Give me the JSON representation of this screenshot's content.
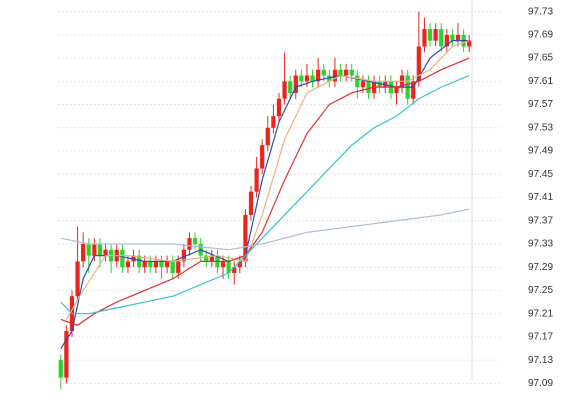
{
  "chart_data": {
    "type": "candlestick",
    "ylim": [
      97.07,
      97.75
    ],
    "yticks": [
      97.09,
      97.13,
      97.17,
      97.21,
      97.25,
      97.29,
      97.33,
      97.37,
      97.41,
      97.45,
      97.49,
      97.53,
      97.57,
      97.61,
      97.65,
      97.69,
      97.73
    ],
    "grid": true,
    "up_color": "#e8251f",
    "down_color": "#2fd12f",
    "open": [
      97.13,
      97.1,
      97.18,
      97.24,
      97.3,
      97.33,
      97.31,
      97.33,
      97.31,
      97.32,
      97.3,
      97.32,
      97.29,
      97.3,
      97.31,
      97.29,
      97.3,
      97.29,
      97.3,
      97.29,
      97.3,
      97.28,
      97.3,
      97.32,
      97.34,
      97.33,
      97.31,
      97.3,
      97.31,
      97.29,
      97.3,
      97.28,
      97.29,
      97.3,
      97.38,
      97.42,
      97.46,
      97.5,
      97.53,
      97.55,
      97.58,
      97.61,
      97.59,
      97.62,
      97.61,
      97.62,
      97.61,
      97.63,
      97.62,
      97.61,
      97.63,
      97.62,
      97.63,
      97.62,
      97.6,
      97.61,
      97.59,
      97.61,
      97.6,
      97.61,
      97.59,
      97.6,
      97.62,
      97.58,
      97.61,
      97.67,
      97.7,
      97.68,
      97.7,
      97.67,
      97.69,
      97.68,
      97.69,
      97.67
    ],
    "high": [
      97.14,
      97.19,
      97.25,
      97.36,
      97.35,
      97.34,
      97.34,
      97.34,
      97.33,
      97.33,
      97.33,
      97.33,
      97.31,
      97.32,
      97.32,
      97.31,
      97.31,
      97.31,
      97.31,
      97.31,
      97.31,
      97.31,
      97.33,
      97.35,
      97.35,
      97.34,
      97.32,
      97.32,
      97.32,
      97.31,
      97.31,
      97.3,
      97.31,
      97.39,
      97.43,
      97.48,
      97.51,
      97.55,
      97.57,
      97.59,
      97.66,
      97.62,
      97.63,
      97.63,
      97.64,
      97.63,
      97.65,
      97.64,
      97.63,
      97.65,
      97.64,
      97.64,
      97.64,
      97.63,
      97.62,
      97.62,
      97.62,
      97.62,
      97.62,
      97.62,
      97.61,
      97.63,
      97.63,
      97.62,
      97.73,
      97.72,
      97.71,
      97.71,
      97.71,
      97.7,
      97.7,
      97.71,
      97.7,
      97.69
    ],
    "low": [
      97.08,
      97.09,
      97.17,
      97.23,
      97.29,
      97.28,
      97.3,
      97.29,
      97.3,
      97.28,
      97.29,
      97.28,
      97.28,
      97.29,
      97.28,
      97.28,
      97.28,
      97.28,
      97.27,
      97.28,
      97.27,
      97.27,
      97.29,
      97.31,
      97.32,
      97.3,
      97.29,
      97.29,
      97.28,
      97.27,
      97.27,
      97.26,
      97.28,
      97.29,
      97.37,
      97.41,
      97.45,
      97.49,
      97.52,
      97.54,
      97.57,
      97.58,
      97.58,
      97.6,
      97.6,
      97.6,
      97.6,
      97.61,
      97.6,
      97.6,
      97.61,
      97.61,
      97.61,
      97.58,
      97.59,
      97.58,
      97.58,
      97.59,
      97.59,
      97.58,
      97.57,
      97.59,
      97.57,
      97.57,
      97.6,
      97.66,
      97.67,
      97.67,
      97.66,
      97.66,
      97.67,
      97.67,
      97.66,
      97.66
    ],
    "close": [
      97.1,
      97.18,
      97.24,
      97.3,
      97.33,
      97.31,
      97.33,
      97.31,
      97.32,
      97.3,
      97.32,
      97.29,
      97.3,
      97.31,
      97.29,
      97.3,
      97.29,
      97.3,
      97.29,
      97.3,
      97.28,
      97.3,
      97.32,
      97.34,
      97.33,
      97.31,
      97.3,
      97.31,
      97.29,
      97.3,
      97.28,
      97.29,
      97.3,
      97.38,
      97.42,
      97.46,
      97.5,
      97.53,
      97.55,
      97.58,
      97.61,
      97.59,
      97.62,
      97.61,
      97.62,
      97.61,
      97.63,
      97.62,
      97.61,
      97.63,
      97.62,
      97.63,
      97.62,
      97.6,
      97.61,
      97.59,
      97.61,
      97.6,
      97.61,
      97.59,
      97.6,
      97.62,
      97.58,
      97.61,
      97.67,
      97.7,
      97.68,
      97.7,
      97.67,
      97.69,
      97.68,
      97.69,
      97.67,
      97.68
    ],
    "lines": [
      {
        "color": "#2f4fa8",
        "x": [
          0,
          2,
          4,
          6,
          10,
          15,
          20,
          25,
          30,
          33,
          36,
          39,
          42,
          45,
          50,
          55,
          60,
          63,
          66,
          70,
          73
        ],
        "values": [
          97.15,
          97.18,
          97.27,
          97.31,
          97.31,
          97.3,
          97.3,
          97.32,
          97.3,
          97.31,
          97.44,
          97.54,
          97.6,
          97.61,
          97.62,
          97.61,
          97.6,
          97.6,
          97.65,
          97.68,
          97.68
        ]
      },
      {
        "color": "#eeb08a",
        "x": [
          1,
          4,
          8,
          12,
          20,
          28,
          33,
          36,
          40,
          44,
          50,
          56,
          62,
          66,
          70,
          73
        ],
        "values": [
          97.2,
          97.25,
          97.31,
          97.31,
          97.3,
          97.31,
          97.3,
          97.38,
          97.51,
          97.59,
          97.62,
          97.61,
          97.61,
          97.63,
          97.67,
          97.68
        ]
      },
      {
        "color": "#e03030",
        "x": [
          0,
          3,
          6,
          10,
          15,
          20,
          25,
          30,
          33,
          36,
          40,
          44,
          48,
          52,
          56,
          60,
          64,
          68,
          73
        ],
        "values": [
          97.2,
          97.19,
          97.21,
          97.23,
          97.25,
          97.27,
          97.3,
          97.3,
          97.31,
          97.35,
          97.44,
          97.52,
          97.57,
          97.59,
          97.6,
          97.6,
          97.61,
          97.63,
          97.65
        ]
      },
      {
        "color": "#36c3cb",
        "x": [
          0,
          2,
          5,
          10,
          15,
          20,
          25,
          30,
          33,
          36,
          40,
          44,
          48,
          52,
          56,
          60,
          64,
          68,
          73
        ],
        "values": [
          97.23,
          97.21,
          97.21,
          97.22,
          97.23,
          97.24,
          97.26,
          97.28,
          97.31,
          97.34,
          97.38,
          97.42,
          97.46,
          97.5,
          97.53,
          97.55,
          97.58,
          97.6,
          97.62
        ]
      },
      {
        "color": "#a9bfd6",
        "x": [
          0,
          5,
          10,
          20,
          30,
          36,
          44,
          52,
          60,
          68,
          73
        ],
        "values": [
          97.34,
          97.33,
          97.33,
          97.33,
          97.32,
          97.33,
          97.35,
          97.36,
          97.37,
          97.38,
          97.39
        ]
      }
    ]
  }
}
